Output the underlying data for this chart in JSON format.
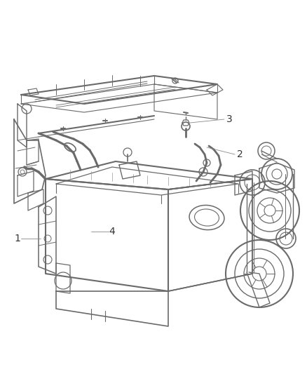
{
  "background_color": "#ffffff",
  "line_color": "#6a6a6a",
  "label_color": "#333333",
  "fig_width": 4.38,
  "fig_height": 5.33,
  "dpi": 100,
  "image_bounds": [
    0,
    1,
    0,
    1
  ]
}
